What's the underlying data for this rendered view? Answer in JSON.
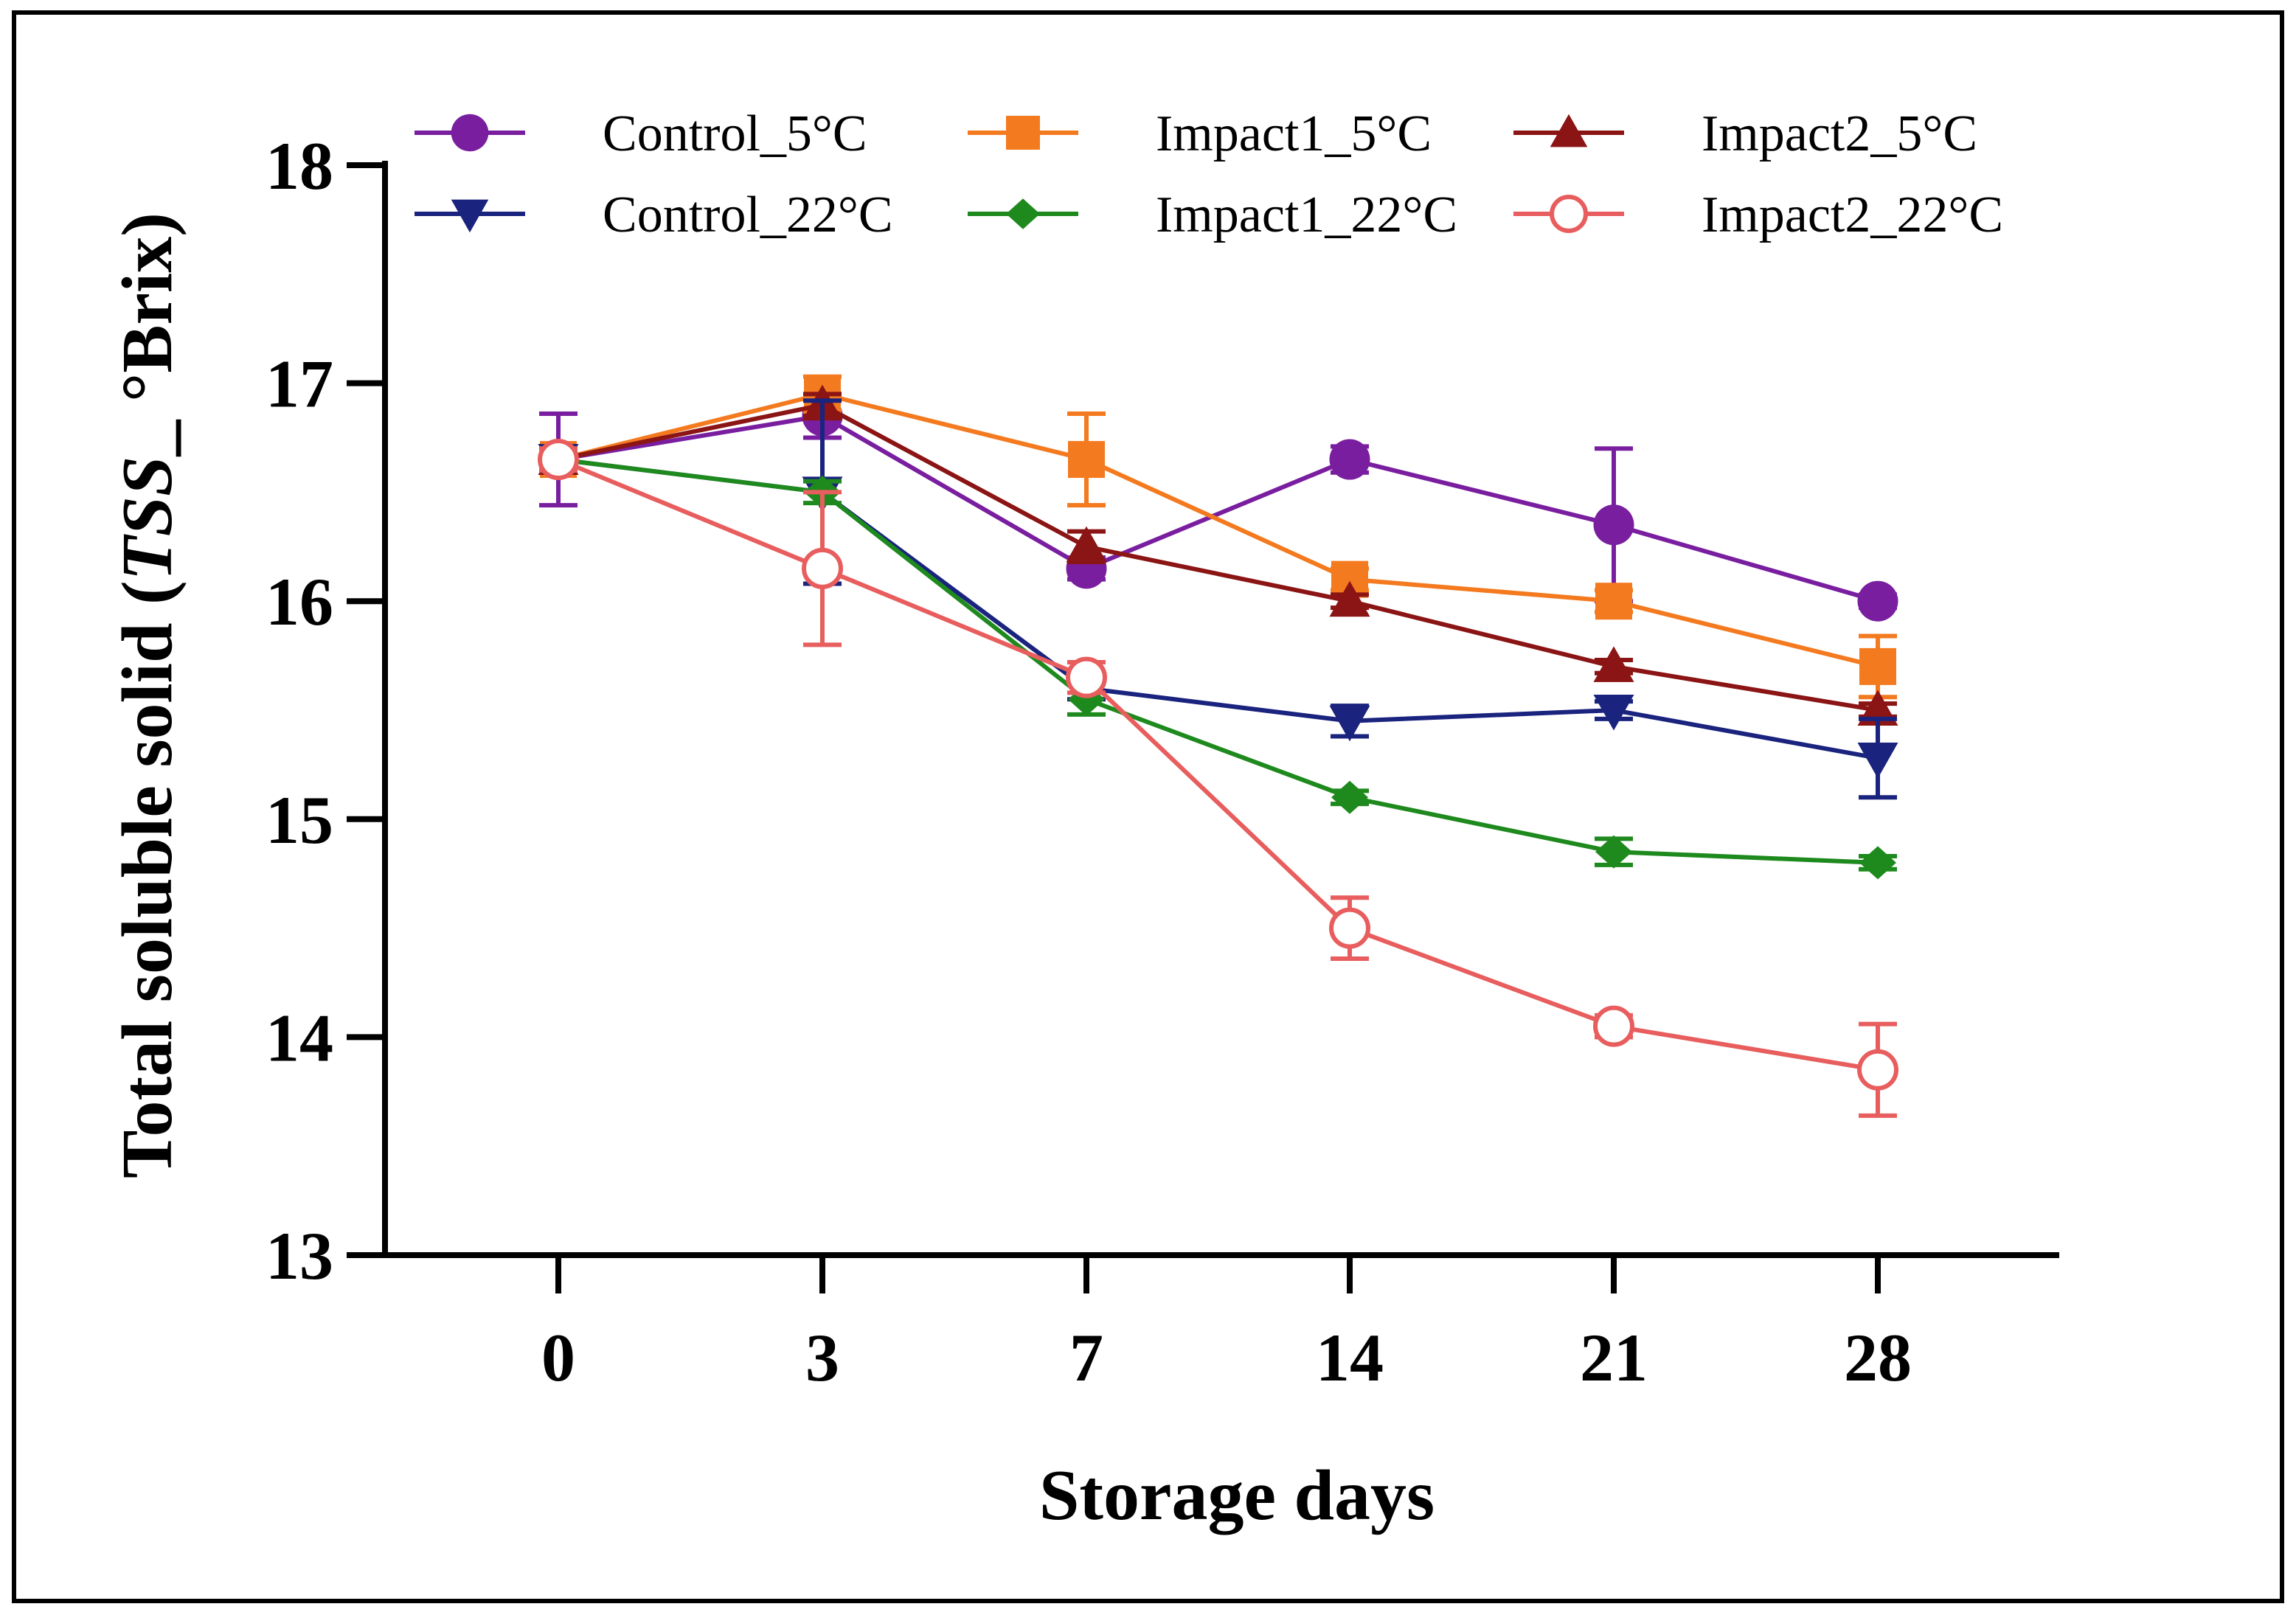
{
  "chart_data": {
    "type": "line",
    "title": "",
    "xlabel": "Storage days",
    "ylabel_parts": [
      "Total soluble solid (",
      "TSS",
      "_ °Brix)"
    ],
    "categories": [
      "0",
      "3",
      "7",
      "14",
      "21",
      "28"
    ],
    "ylim": [
      13,
      18
    ],
    "yticks": [
      13,
      14,
      15,
      16,
      17,
      18
    ],
    "legend_position": "top",
    "series": [
      {
        "name": "Control_5°C",
        "color": "#7a1ea0",
        "marker": "circle",
        "values": [
          16.65,
          16.85,
          16.15,
          16.65,
          16.35,
          16.0
        ],
        "errors": [
          0.21,
          0.1,
          0.05,
          0.06,
          0.35,
          0.03
        ]
      },
      {
        "name": "Impact1_5°C",
        "color": "#f47a1f",
        "marker": "square",
        "values": [
          16.65,
          16.95,
          16.65,
          16.1,
          16.0,
          15.7
        ],
        "errors": [
          0.05,
          0.08,
          0.21,
          0.05,
          0.05,
          0.14
        ]
      },
      {
        "name": "Impact2_5°C",
        "color": "#8b1414",
        "marker": "triangle-up",
        "values": [
          16.65,
          16.9,
          16.25,
          16.0,
          15.7,
          15.5
        ],
        "errors": [
          0.05,
          0.05,
          0.07,
          0.03,
          0.03,
          0.03
        ]
      },
      {
        "name": "Control_22°C",
        "color": "#1a237e",
        "marker": "triangle-down",
        "values": [
          16.65,
          16.5,
          15.6,
          15.45,
          15.5,
          15.28
        ],
        "errors": [
          0.05,
          0.42,
          0.05,
          0.07,
          0.04,
          0.18
        ]
      },
      {
        "name": "Impact1_22°C",
        "color": "#1e8a1e",
        "marker": "diamond",
        "values": [
          16.65,
          16.5,
          15.55,
          15.1,
          14.85,
          14.8
        ],
        "errors": [
          0.05,
          0.05,
          0.07,
          0.03,
          0.06,
          0.03
        ]
      },
      {
        "name": "Impact2_22°C",
        "color": "#e85d5d",
        "marker": "open-circle",
        "values": [
          16.65,
          16.15,
          15.65,
          14.5,
          14.05,
          13.85
        ],
        "errors": [
          0.05,
          0.35,
          0.07,
          0.14,
          0.05,
          0.21
        ]
      }
    ]
  }
}
